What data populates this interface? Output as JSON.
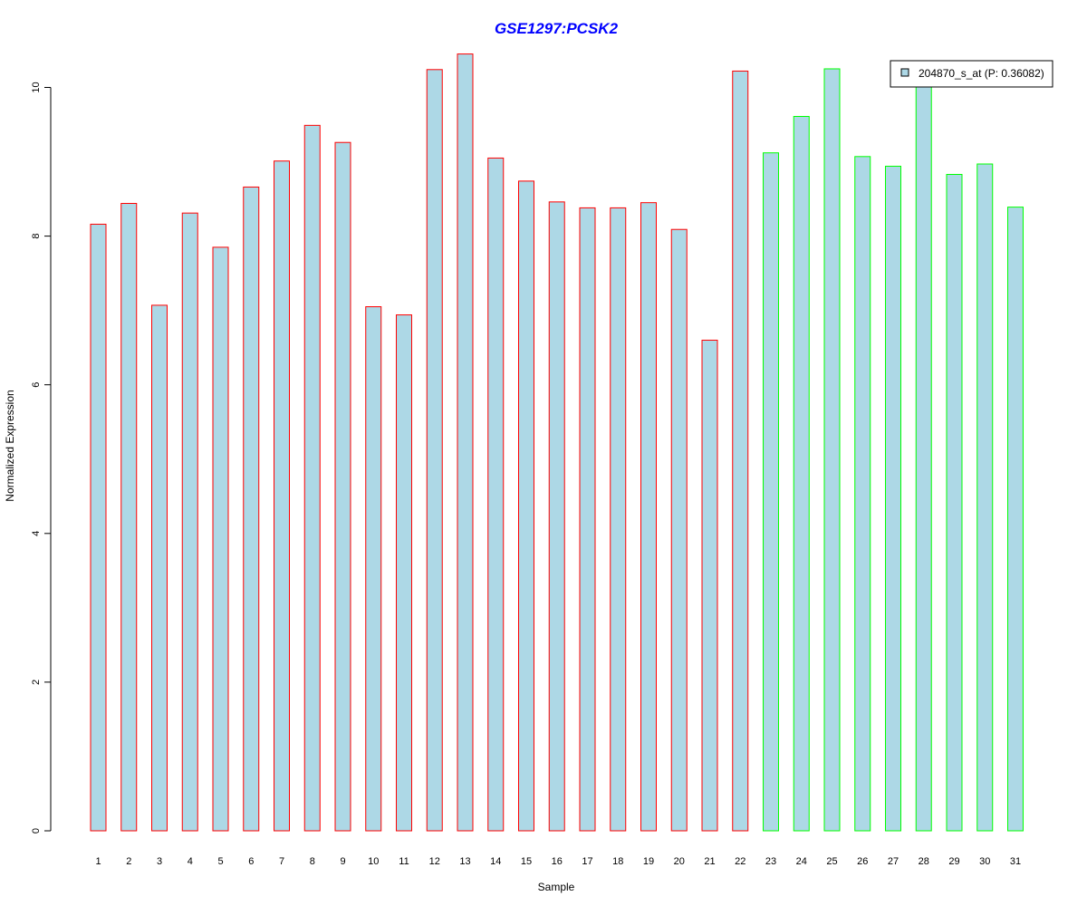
{
  "chart_data": {
    "type": "bar",
    "title": "GSE1297:PCSK2",
    "xlabel": "Sample",
    "ylabel": "Normalized Expression",
    "ylim": [
      0,
      10.5
    ],
    "yticks": [
      0,
      2,
      4,
      6,
      8,
      10
    ],
    "grid": false,
    "legend_position": "top-right",
    "categories": [
      "1",
      "2",
      "3",
      "4",
      "5",
      "6",
      "7",
      "8",
      "9",
      "10",
      "11",
      "12",
      "13",
      "14",
      "15",
      "16",
      "17",
      "18",
      "19",
      "20",
      "21",
      "22",
      "23",
      "24",
      "25",
      "26",
      "27",
      "28",
      "29",
      "30",
      "31"
    ],
    "series": [
      {
        "name": "204870_s_at (P: 0.36082)",
        "values": [
          8.16,
          8.44,
          7.07,
          8.31,
          7.85,
          8.66,
          9.01,
          9.49,
          9.26,
          7.05,
          6.94,
          10.24,
          10.45,
          9.05,
          8.74,
          8.46,
          8.38,
          8.38,
          8.45,
          8.09,
          6.6,
          10.22,
          9.12,
          9.61,
          10.25,
          9.07,
          8.94,
          10.04,
          8.83,
          8.97,
          8.39
        ]
      }
    ],
    "group_sizes": [
      22,
      9
    ],
    "colors": {
      "fill": "#add8e6",
      "group1_border": "#ff0000",
      "group2_border": "#00ff00",
      "title": "#0000ff",
      "axis": "#000000"
    }
  }
}
